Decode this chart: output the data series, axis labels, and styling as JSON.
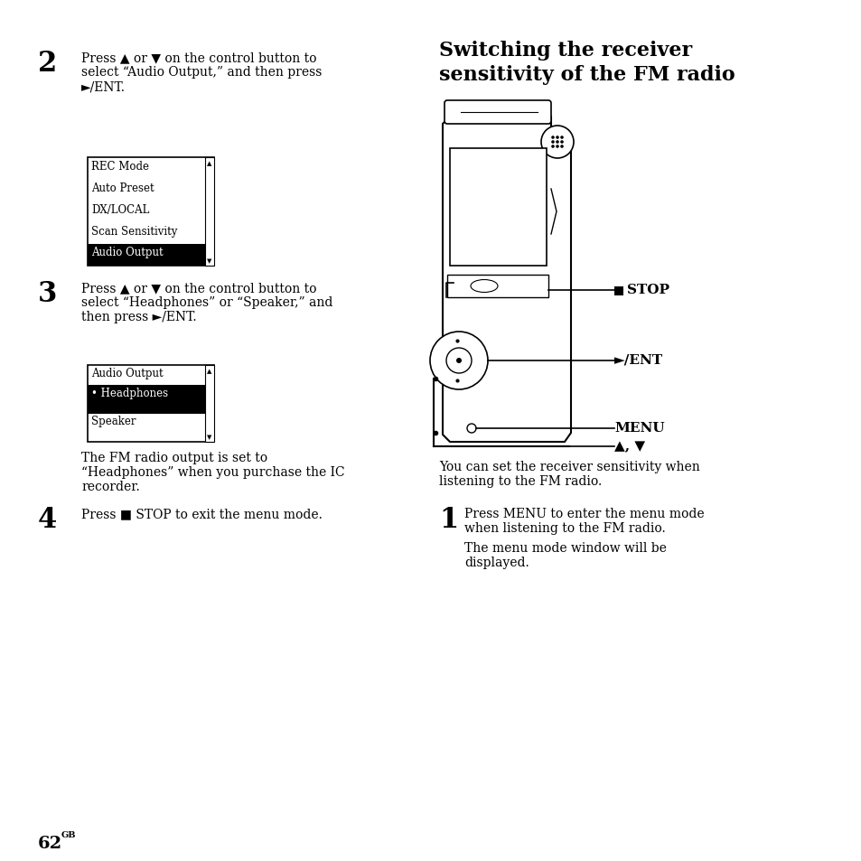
{
  "bg_color": "#ffffff",
  "title": "Switching the receiver\nsensitivity of the FM radio",
  "step2_num": "2",
  "step2_line1": "Press ▲ or ▼ on the control button to",
  "step2_line2": "select “Audio Output,” and then press",
  "step2_line3": "►/ENT.",
  "step3_num": "3",
  "step3_line1": "Press ▲ or ▼ on the control button to",
  "step3_line2": "select “Headphones” or “Speaker,” and",
  "step3_line3": "then press ►/ENT.",
  "step4_num": "4",
  "step4_text": "Press ■ STOP to exit the menu mode.",
  "note_line1": "The FM radio output is set to",
  "note_line2": "“Headphones” when you purchase the IC",
  "note_line3": "recorder.",
  "right_desc_line1": "You can set the receiver sensitivity when",
  "right_desc_line2": "listening to the FM radio.",
  "step1_num": "1",
  "step1_line1": "Press MENU to enter the menu mode",
  "step1_line2": "when listening to the FM radio.",
  "step1_line3": "The menu mode window will be",
  "step1_line4": "displayed.",
  "menu1_items": [
    "REC Mode",
    "Auto Preset",
    "DX/LOCAL",
    "Scan Sensitivity",
    "Audio Output"
  ],
  "menu1_highlight": 4,
  "menu2_header": "Audio Output",
  "menu2_items": [
    "• Headphones",
    "Speaker"
  ],
  "menu2_highlight": 0,
  "page_num": "62",
  "page_sup": "GB"
}
